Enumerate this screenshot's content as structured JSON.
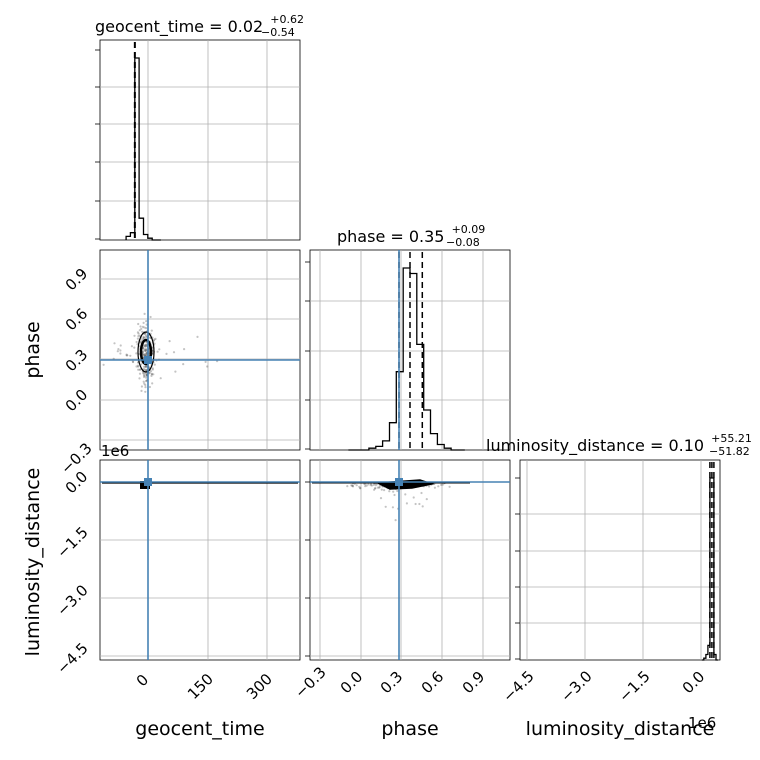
{
  "chart_data": {
    "type": "corner",
    "parameters": [
      "geocent_time",
      "phase",
      "luminosity_distance"
    ],
    "truth": {
      "geocent_time": 0,
      "phase": 0.29,
      "luminosity_distance": 0
    },
    "colors": {
      "truth": "#4682b4",
      "hist": "#000000",
      "grid": "#b0b0b0",
      "points": "#555555"
    },
    "titles": {
      "geocent_time": {
        "prefix": "geocent_time = 0.02",
        "plus": "+0.62",
        "minus": "−0.54"
      },
      "phase": {
        "prefix": "phase = 0.35",
        "plus": "+0.09",
        "minus": "−0.08"
      },
      "luminosity_distance": {
        "prefix": "luminosity_distance = 0.10",
        "plus": "+55.21",
        "minus": "−51.82"
      }
    },
    "axes": {
      "geocent_time": {
        "range": [
          -80,
          380
        ],
        "ticks": [
          0,
          150,
          300
        ],
        "tick_labels": [
          "0",
          "150",
          "300"
        ]
      },
      "phase": {
        "range": [
          -0.38,
          1.08
        ],
        "ticks": [
          -0.3,
          0.0,
          0.3,
          0.6,
          0.9
        ],
        "tick_labels": [
          "−0.3",
          "0.0",
          "0.3",
          "0.6",
          "0.9"
        ]
      },
      "luminosity_distance": {
        "range": [
          -4.75,
          0.2
        ],
        "ticks": [
          -4.5,
          -3.0,
          -1.5,
          0.0
        ],
        "tick_labels": [
          "−4.5",
          "−3.0",
          "−1.5",
          "0.0"
        ],
        "scale_label": "1e6"
      }
    },
    "histograms": {
      "geocent_time": {
        "edges": [
          -20,
          -10,
          0,
          10,
          20,
          30,
          40,
          50,
          60
        ],
        "counts": [
          2,
          4,
          100,
          12,
          3,
          1,
          0,
          0
        ],
        "quantiles": [
          -0.52,
          0.02,
          0.64
        ]
      },
      "phase": {
        "edges": [
          -0.1,
          -0.05,
          0.0,
          0.05,
          0.1,
          0.15,
          0.2,
          0.25,
          0.3,
          0.35,
          0.4,
          0.45,
          0.5,
          0.55,
          0.6,
          0.65,
          0.7,
          0.75
        ],
        "counts": [
          0,
          0,
          0,
          1,
          2,
          5,
          15,
          43,
          100,
          97,
          58,
          22,
          9,
          3,
          1,
          0,
          0
        ],
        "quantiles": [
          0.27,
          0.35,
          0.44
        ]
      },
      "luminosity_distance": {
        "edges": [
          -0.25,
          -0.2,
          -0.15,
          -0.1,
          -0.05,
          0.0,
          0.05,
          0.1,
          0.15
        ],
        "counts": [
          0,
          1,
          3,
          8,
          100,
          100,
          3,
          0
        ],
        "quantiles": [
          -0.05,
          0.0,
          0.05
        ]
      }
    }
  }
}
